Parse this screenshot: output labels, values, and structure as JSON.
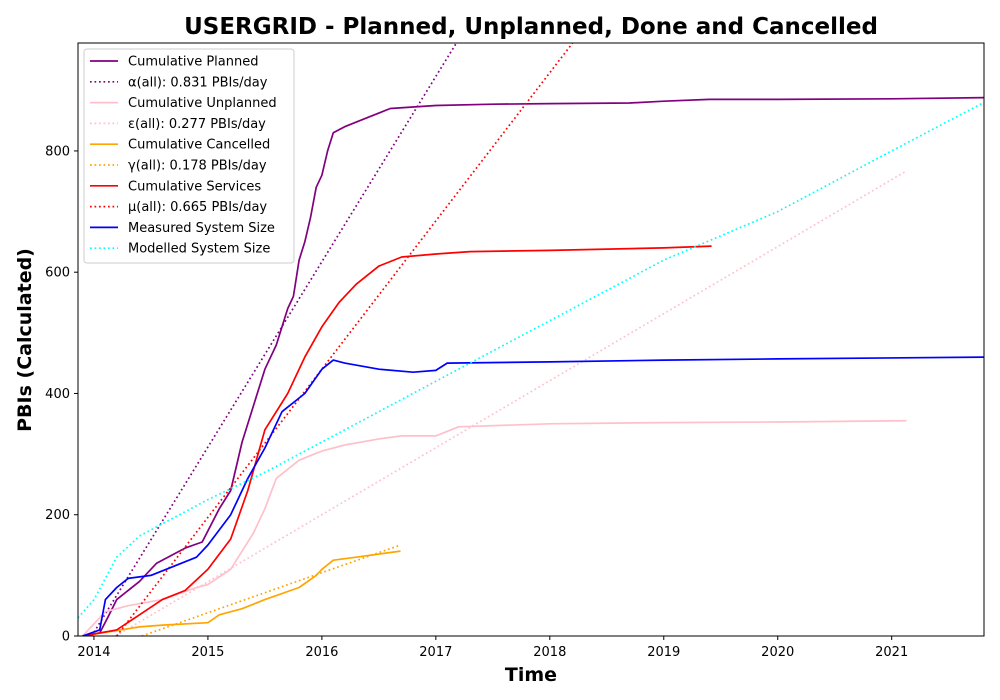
{
  "chart_data": {
    "type": "line",
    "title": "USERGRID - Planned, Unplanned, Done  and Cancelled",
    "xlabel": "Time",
    "ylabel": "PBIs (Calculated)",
    "xlim": [
      2013.86,
      2021.81
    ],
    "ylim": [
      0,
      978
    ],
    "x_ticks": [
      2014,
      2015,
      2016,
      2017,
      2018,
      2019,
      2020,
      2021
    ],
    "y_ticks": [
      0,
      200,
      400,
      600,
      800
    ],
    "legend_position": "upper-left",
    "grid": false,
    "series": [
      {
        "name": "Cumulative Planned",
        "color": "#800080",
        "style": "solid",
        "points": [
          [
            2013.9,
            0
          ],
          [
            2014.05,
            5
          ],
          [
            2014.12,
            30
          ],
          [
            2014.2,
            60
          ],
          [
            2014.4,
            90
          ],
          [
            2014.55,
            120
          ],
          [
            2014.8,
            145
          ],
          [
            2014.95,
            155
          ],
          [
            2015.1,
            210
          ],
          [
            2015.2,
            240
          ],
          [
            2015.3,
            320
          ],
          [
            2015.4,
            380
          ],
          [
            2015.5,
            440
          ],
          [
            2015.6,
            480
          ],
          [
            2015.7,
            540
          ],
          [
            2015.75,
            560
          ],
          [
            2015.8,
            620
          ],
          [
            2015.85,
            650
          ],
          [
            2015.9,
            690
          ],
          [
            2015.95,
            740
          ],
          [
            2016.0,
            760
          ],
          [
            2016.05,
            800
          ],
          [
            2016.1,
            830
          ],
          [
            2016.2,
            840
          ],
          [
            2016.4,
            855
          ],
          [
            2016.6,
            870
          ],
          [
            2017.0,
            875
          ],
          [
            2017.5,
            877
          ],
          [
            2018.0,
            878
          ],
          [
            2018.7,
            879
          ],
          [
            2019.0,
            882
          ],
          [
            2019.4,
            885
          ],
          [
            2020.0,
            885
          ],
          [
            2021.0,
            886
          ],
          [
            2021.81,
            888
          ]
        ]
      },
      {
        "name": "α(all): 0.831 PBIs/day",
        "color": "#800080",
        "style": "dotted",
        "points": [
          [
            2013.98,
            0
          ],
          [
            2017.18,
            978
          ]
        ]
      },
      {
        "name": "Cumulative Unplanned",
        "color": "#FFC0CB",
        "style": "solid",
        "points": [
          [
            2013.9,
            0
          ],
          [
            2014.1,
            40
          ],
          [
            2014.3,
            50
          ],
          [
            2014.6,
            60
          ],
          [
            2014.9,
            80
          ],
          [
            2015.0,
            85
          ],
          [
            2015.2,
            110
          ],
          [
            2015.4,
            170
          ],
          [
            2015.5,
            210
          ],
          [
            2015.6,
            260
          ],
          [
            2015.8,
            290
          ],
          [
            2016.0,
            305
          ],
          [
            2016.2,
            315
          ],
          [
            2016.5,
            325
          ],
          [
            2016.7,
            330
          ],
          [
            2017.0,
            330
          ],
          [
            2017.2,
            345
          ],
          [
            2018.0,
            350
          ],
          [
            2019.0,
            352
          ],
          [
            2020.0,
            353
          ],
          [
            2021.13,
            355
          ]
        ]
      },
      {
        "name": "ε(all): 0.277 PBIs/day",
        "color": "#FFC0CB",
        "style": "dotted",
        "points": [
          [
            2014.19,
            0
          ],
          [
            2021.13,
            767
          ]
        ]
      },
      {
        "name": "Cumulative Cancelled",
        "color": "#FFA500",
        "style": "solid",
        "points": [
          [
            2013.9,
            0
          ],
          [
            2014.4,
            15
          ],
          [
            2014.6,
            18
          ],
          [
            2015.0,
            22
          ],
          [
            2015.1,
            35
          ],
          [
            2015.3,
            45
          ],
          [
            2015.5,
            60
          ],
          [
            2015.8,
            80
          ],
          [
            2015.95,
            100
          ],
          [
            2016.0,
            110
          ],
          [
            2016.1,
            125
          ],
          [
            2016.3,
            130
          ],
          [
            2016.69,
            140
          ]
        ]
      },
      {
        "name": "γ(all): 0.178 PBIs/day",
        "color": "#FFA500",
        "style": "dotted",
        "points": [
          [
            2014.42,
            0
          ],
          [
            2016.69,
            150
          ]
        ]
      },
      {
        "name": "Cumulative Services",
        "color": "#FF0000",
        "style": "solid",
        "points": [
          [
            2013.9,
            0
          ],
          [
            2014.2,
            10
          ],
          [
            2014.4,
            35
          ],
          [
            2014.6,
            60
          ],
          [
            2014.8,
            75
          ],
          [
            2015.0,
            110
          ],
          [
            2015.2,
            160
          ],
          [
            2015.35,
            240
          ],
          [
            2015.5,
            340
          ],
          [
            2015.7,
            400
          ],
          [
            2015.85,
            460
          ],
          [
            2016.0,
            510
          ],
          [
            2016.15,
            550
          ],
          [
            2016.3,
            580
          ],
          [
            2016.5,
            610
          ],
          [
            2016.7,
            625
          ],
          [
            2017.0,
            630
          ],
          [
            2017.3,
            634
          ],
          [
            2018.0,
            636
          ],
          [
            2019.0,
            640
          ],
          [
            2019.42,
            643
          ]
        ]
      },
      {
        "name": "μ(all): 0.665 PBIs/day",
        "color": "#FF0000",
        "style": "dotted",
        "points": [
          [
            2014.2,
            0
          ],
          [
            2018.2,
            978
          ]
        ]
      },
      {
        "name": "Measured System Size",
        "color": "#0000FF",
        "style": "solid",
        "points": [
          [
            2013.9,
            0
          ],
          [
            2014.05,
            10
          ],
          [
            2014.1,
            60
          ],
          [
            2014.2,
            80
          ],
          [
            2014.3,
            95
          ],
          [
            2014.5,
            100
          ],
          [
            2014.7,
            115
          ],
          [
            2014.9,
            130
          ],
          [
            2015.0,
            150
          ],
          [
            2015.2,
            200
          ],
          [
            2015.35,
            260
          ],
          [
            2015.5,
            310
          ],
          [
            2015.65,
            370
          ],
          [
            2015.85,
            400
          ],
          [
            2016.0,
            440
          ],
          [
            2016.1,
            455
          ],
          [
            2016.2,
            450
          ],
          [
            2016.5,
            440
          ],
          [
            2016.8,
            435
          ],
          [
            2017.0,
            438
          ],
          [
            2017.1,
            450
          ],
          [
            2018.0,
            452
          ],
          [
            2019.0,
            455
          ],
          [
            2020.0,
            457
          ],
          [
            2021.81,
            460
          ]
        ]
      },
      {
        "name": "Modelled System Size",
        "color": "#00FFFF",
        "style": "dotted",
        "points": [
          [
            2013.86,
            30
          ],
          [
            2014.0,
            60
          ],
          [
            2014.2,
            130
          ],
          [
            2014.4,
            165
          ],
          [
            2014.7,
            195
          ],
          [
            2015.0,
            225
          ],
          [
            2015.5,
            270
          ],
          [
            2016.0,
            320
          ],
          [
            2017.0,
            420
          ],
          [
            2018.0,
            520
          ],
          [
            2019.0,
            620
          ],
          [
            2020.0,
            700
          ],
          [
            2021.0,
            800
          ],
          [
            2021.81,
            880
          ]
        ]
      }
    ]
  }
}
